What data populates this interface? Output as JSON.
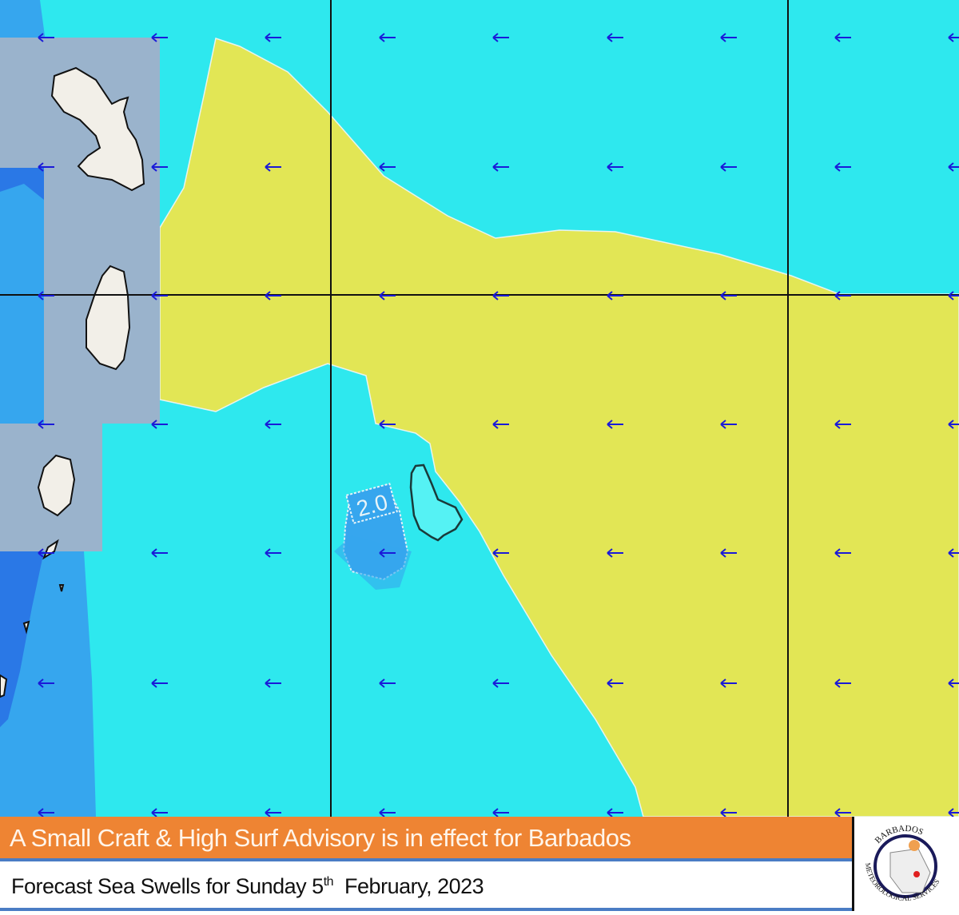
{
  "map": {
    "contour_label": "2.0",
    "arrow_direction": "west",
    "colors": {
      "sea_low": "#2ee8ee",
      "sea_high": "#e2e655",
      "sea_blue": "#36a6ee",
      "sea_deep": "#2a78e6",
      "land_mask": "#9ab3cc",
      "land": "#f2efe8",
      "arrow": "#1a1ad8"
    }
  },
  "banner": {
    "advisory": "A Small Craft & High Surf Advisory is in effect for Barbados"
  },
  "subtitle": {
    "prefix": "Forecast Sea Swells for Sunday 5",
    "ordinal": "th",
    "suffix": "  February, 2023"
  },
  "logo": {
    "top_text": "BARBADOS",
    "bottom_text": "METEOROLOGICAL SERVICES"
  }
}
